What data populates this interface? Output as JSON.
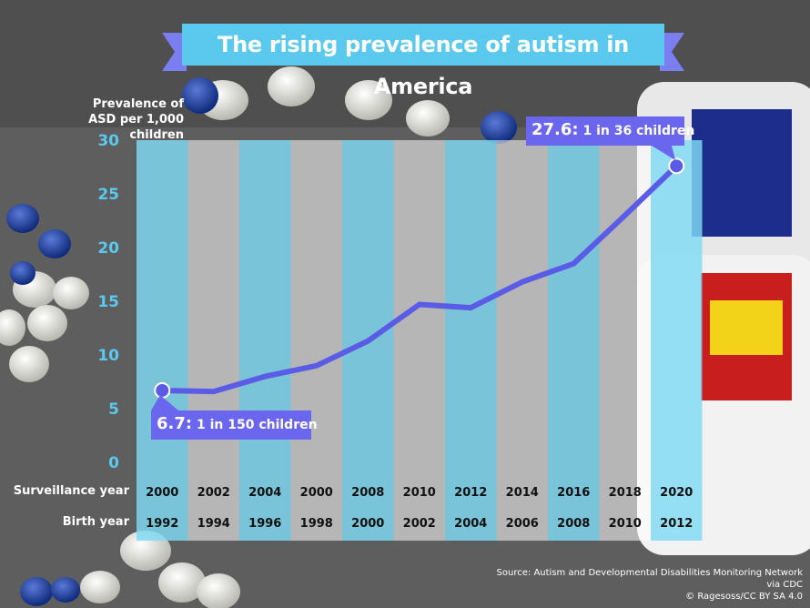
{
  "header": {
    "title": "The rising prevalence of autism in America"
  },
  "labels": {
    "surveillance_year_label": "Surveillance year",
    "birth_year_label": "Birth year",
    "source_line1": "Source: Autism and Developmental Disabilities Monitoring Network via CDC",
    "source_line2": "© Ragesoss/CC BY SA 4.0"
  },
  "callouts": {
    "start": {
      "value": "6.7:",
      "text": "1 in 150 children"
    },
    "end": {
      "value": "27.6:",
      "text": "1 in 36 children"
    }
  },
  "colors": {
    "line": "#5b5ce6",
    "band_light": "#7fdaf4",
    "band_white": "#ffffff",
    "banner": "#5bc8ee",
    "ribbon": "#7b7ef0"
  },
  "chart_data": {
    "type": "line",
    "ylabel": "Prevalence of ASD per 1,000 children",
    "ylim": [
      0,
      30
    ],
    "yticks": [
      "0",
      "5",
      "10",
      "15",
      "20",
      "25",
      "30"
    ],
    "surveillance_years": [
      "2000",
      "2002",
      "2004",
      "2000",
      "2008",
      "2010",
      "2012",
      "2014",
      "2016",
      "2018",
      "2020"
    ],
    "birth_years": [
      "1992",
      "1994",
      "1996",
      "1998",
      "2000",
      "2002",
      "2004",
      "2006",
      "2008",
      "2010",
      "2012"
    ],
    "values": [
      6.7,
      6.6,
      8.0,
      9.0,
      11.3,
      14.7,
      14.4,
      16.8,
      18.5,
      23.0,
      27.6
    ],
    "grid": false,
    "legend": "none"
  }
}
